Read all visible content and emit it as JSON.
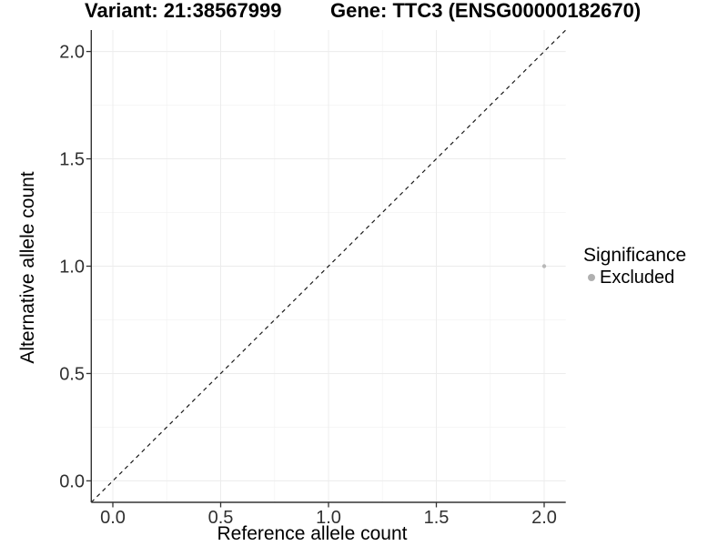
{
  "chart_data": {
    "type": "scatter",
    "title_left": "Variant: 21:38567999",
    "title_right": "Gene: TTC3 (ENSG00000182670)",
    "xlabel": "Reference allele count",
    "ylabel": "Alternative allele count",
    "xlim": [
      -0.1,
      2.1
    ],
    "ylim": [
      -0.1,
      2.1
    ],
    "x_tick_values": [
      0,
      0.5,
      1,
      1.5,
      2
    ],
    "x_tick_labels": [
      "0.0",
      "0.5",
      "1.0",
      "1.5",
      "2.0"
    ],
    "y_tick_values": [
      0,
      0.5,
      1,
      1.5,
      2
    ],
    "y_tick_labels": [
      "0.0",
      "0.5",
      "1.0",
      "1.5",
      "2.0"
    ],
    "minor_tick_values": [
      0.25,
      0.75,
      1.25,
      1.75
    ],
    "grid": true,
    "identity_line": {
      "style": "dashed",
      "x1": -0.1,
      "y1": -0.1,
      "x2": 2.1,
      "y2": 2.1
    },
    "series": [
      {
        "name": "Excluded",
        "color": "#b8b8b8",
        "points": [
          {
            "x": 2.0,
            "y": 1.0
          }
        ]
      }
    ],
    "legend": {
      "title": "Significance",
      "position": "right",
      "entries": [
        {
          "label": "Excluded",
          "color": "#b0b0b0"
        }
      ]
    },
    "colors": {
      "background": "#ffffff",
      "axis_line": "#333333",
      "tick_label": "#303030",
      "grid_major": "#ececec",
      "grid_minor": "#f4f4f4",
      "dashed_line": "#1a1a1a",
      "point": "#b8b8b8"
    }
  }
}
